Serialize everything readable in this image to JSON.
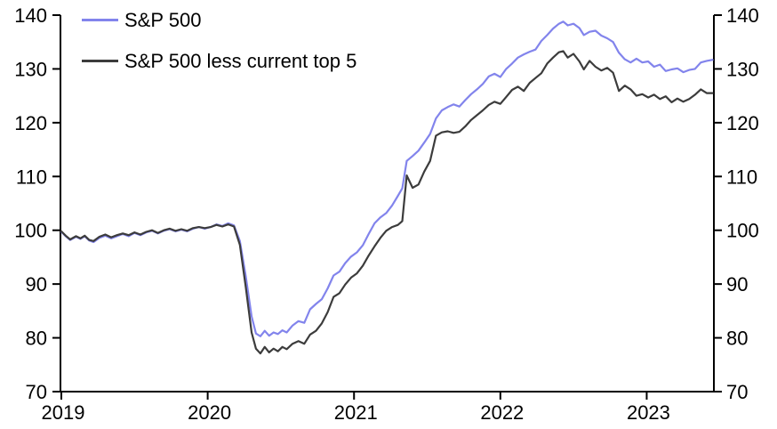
{
  "chart_data": {
    "type": "line",
    "title": "",
    "xlabel": "",
    "ylabel": "",
    "grid": false,
    "background": "#ffffff",
    "axis_color": "#000000",
    "legend_position": "inside-top-left",
    "x_axis": {
      "range": [
        2019.0,
        2023.459
      ],
      "ticks": [
        2019,
        2020,
        2021,
        2022,
        2023
      ],
      "tick_labels": [
        "2019",
        "2020",
        "2021",
        "2022",
        "2023"
      ]
    },
    "y_axis": {
      "range": [
        70,
        140
      ],
      "ticks": [
        70,
        80,
        90,
        100,
        110,
        120,
        130,
        140
      ],
      "tick_labels": [
        "70",
        "80",
        "90",
        "100",
        "110",
        "120",
        "130",
        "140"
      ],
      "sides": [
        "left",
        "right"
      ]
    },
    "series": [
      {
        "name": "S&P 500",
        "color": "#8284EC",
        "line_width": 2.2,
        "points": [
          [
            2019.0,
            99.7
          ],
          [
            2019.03,
            98.9
          ],
          [
            2019.06,
            98.2
          ],
          [
            2019.1,
            98.8
          ],
          [
            2019.13,
            98.4
          ],
          [
            2019.16,
            98.9
          ],
          [
            2019.19,
            98.1
          ],
          [
            2019.22,
            97.8
          ],
          [
            2019.26,
            98.6
          ],
          [
            2019.3,
            99.0
          ],
          [
            2019.34,
            98.5
          ],
          [
            2019.38,
            98.9
          ],
          [
            2019.42,
            99.3
          ],
          [
            2019.46,
            98.9
          ],
          [
            2019.5,
            99.5
          ],
          [
            2019.54,
            99.1
          ],
          [
            2019.58,
            99.6
          ],
          [
            2019.62,
            99.9
          ],
          [
            2019.66,
            99.4
          ],
          [
            2019.7,
            99.9
          ],
          [
            2019.74,
            100.2
          ],
          [
            2019.78,
            99.8
          ],
          [
            2019.82,
            100.1
          ],
          [
            2019.86,
            99.8
          ],
          [
            2019.9,
            100.3
          ],
          [
            2019.94,
            100.6
          ],
          [
            2019.98,
            100.3
          ],
          [
            2020.02,
            100.6
          ],
          [
            2020.06,
            101.1
          ],
          [
            2020.1,
            100.8
          ],
          [
            2020.14,
            101.3
          ],
          [
            2020.18,
            100.9
          ],
          [
            2020.22,
            98.0
          ],
          [
            2020.26,
            91.5
          ],
          [
            2020.3,
            84.0
          ],
          [
            2020.33,
            80.8
          ],
          [
            2020.36,
            80.3
          ],
          [
            2020.39,
            81.3
          ],
          [
            2020.42,
            80.4
          ],
          [
            2020.45,
            81.0
          ],
          [
            2020.48,
            80.7
          ],
          [
            2020.51,
            81.4
          ],
          [
            2020.54,
            81.0
          ],
          [
            2020.58,
            82.3
          ],
          [
            2020.62,
            83.1
          ],
          [
            2020.66,
            82.8
          ],
          [
            2020.7,
            85.3
          ],
          [
            2020.74,
            86.3
          ],
          [
            2020.78,
            87.2
          ],
          [
            2020.82,
            89.2
          ],
          [
            2020.86,
            91.6
          ],
          [
            2020.9,
            92.3
          ],
          [
            2020.94,
            93.9
          ],
          [
            2020.98,
            95.1
          ],
          [
            2021.02,
            95.9
          ],
          [
            2021.06,
            97.2
          ],
          [
            2021.1,
            99.3
          ],
          [
            2021.14,
            101.3
          ],
          [
            2021.18,
            102.4
          ],
          [
            2021.22,
            103.2
          ],
          [
            2021.26,
            104.6
          ],
          [
            2021.3,
            106.4
          ],
          [
            2021.33,
            107.8
          ],
          [
            2021.36,
            112.9
          ],
          [
            2021.4,
            113.8
          ],
          [
            2021.44,
            114.8
          ],
          [
            2021.48,
            116.3
          ],
          [
            2021.52,
            117.9
          ],
          [
            2021.56,
            120.8
          ],
          [
            2021.6,
            122.3
          ],
          [
            2021.64,
            122.9
          ],
          [
            2021.68,
            123.4
          ],
          [
            2021.72,
            123.0
          ],
          [
            2021.76,
            124.2
          ],
          [
            2021.8,
            125.3
          ],
          [
            2021.84,
            126.2
          ],
          [
            2021.88,
            127.2
          ],
          [
            2021.92,
            128.6
          ],
          [
            2021.96,
            129.1
          ],
          [
            2022.0,
            128.5
          ],
          [
            2022.04,
            130.0
          ],
          [
            2022.08,
            131.0
          ],
          [
            2022.12,
            132.1
          ],
          [
            2022.16,
            132.7
          ],
          [
            2022.2,
            133.2
          ],
          [
            2022.24,
            133.6
          ],
          [
            2022.28,
            135.2
          ],
          [
            2022.32,
            136.3
          ],
          [
            2022.36,
            137.5
          ],
          [
            2022.4,
            138.4
          ],
          [
            2022.43,
            138.8
          ],
          [
            2022.46,
            138.1
          ],
          [
            2022.5,
            138.4
          ],
          [
            2022.54,
            137.6
          ],
          [
            2022.57,
            136.3
          ],
          [
            2022.61,
            136.9
          ],
          [
            2022.65,
            137.1
          ],
          [
            2022.69,
            136.2
          ],
          [
            2022.73,
            135.7
          ],
          [
            2022.77,
            135.0
          ],
          [
            2022.81,
            133.0
          ],
          [
            2022.85,
            131.8
          ],
          [
            2022.89,
            131.2
          ],
          [
            2022.93,
            131.9
          ],
          [
            2022.97,
            131.2
          ],
          [
            2023.01,
            131.4
          ],
          [
            2023.05,
            130.4
          ],
          [
            2023.09,
            130.8
          ],
          [
            2023.13,
            129.6
          ],
          [
            2023.17,
            129.9
          ],
          [
            2023.21,
            130.1
          ],
          [
            2023.25,
            129.4
          ],
          [
            2023.29,
            129.8
          ],
          [
            2023.33,
            130.0
          ],
          [
            2023.37,
            131.2
          ],
          [
            2023.41,
            131.5
          ],
          [
            2023.45,
            131.7
          ]
        ]
      },
      {
        "name": "S&P 500 less current top 5",
        "color": "#3C3C3C",
        "line_width": 2.2,
        "points": [
          [
            2019.0,
            99.8
          ],
          [
            2019.03,
            99.0
          ],
          [
            2019.06,
            98.3
          ],
          [
            2019.1,
            98.9
          ],
          [
            2019.13,
            98.5
          ],
          [
            2019.16,
            99.0
          ],
          [
            2019.19,
            98.2
          ],
          [
            2019.22,
            98.0
          ],
          [
            2019.26,
            98.8
          ],
          [
            2019.3,
            99.2
          ],
          [
            2019.34,
            98.7
          ],
          [
            2019.38,
            99.1
          ],
          [
            2019.42,
            99.4
          ],
          [
            2019.46,
            99.1
          ],
          [
            2019.5,
            99.6
          ],
          [
            2019.54,
            99.2
          ],
          [
            2019.58,
            99.7
          ],
          [
            2019.62,
            100.0
          ],
          [
            2019.66,
            99.5
          ],
          [
            2019.7,
            100.0
          ],
          [
            2019.74,
            100.3
          ],
          [
            2019.78,
            99.9
          ],
          [
            2019.82,
            100.2
          ],
          [
            2019.86,
            99.9
          ],
          [
            2019.9,
            100.4
          ],
          [
            2019.94,
            100.6
          ],
          [
            2019.98,
            100.4
          ],
          [
            2020.02,
            100.6
          ],
          [
            2020.06,
            101.0
          ],
          [
            2020.1,
            100.7
          ],
          [
            2020.14,
            101.1
          ],
          [
            2020.18,
            100.7
          ],
          [
            2020.22,
            97.3
          ],
          [
            2020.26,
            89.5
          ],
          [
            2020.3,
            81.0
          ],
          [
            2020.33,
            78.0
          ],
          [
            2020.36,
            77.1
          ],
          [
            2020.39,
            78.3
          ],
          [
            2020.42,
            77.3
          ],
          [
            2020.45,
            78.0
          ],
          [
            2020.48,
            77.5
          ],
          [
            2020.51,
            78.3
          ],
          [
            2020.54,
            77.9
          ],
          [
            2020.58,
            78.9
          ],
          [
            2020.62,
            79.4
          ],
          [
            2020.66,
            78.9
          ],
          [
            2020.7,
            80.6
          ],
          [
            2020.74,
            81.3
          ],
          [
            2020.78,
            82.7
          ],
          [
            2020.82,
            84.8
          ],
          [
            2020.86,
            87.6
          ],
          [
            2020.9,
            88.3
          ],
          [
            2020.94,
            89.9
          ],
          [
            2020.98,
            91.2
          ],
          [
            2021.02,
            92.0
          ],
          [
            2021.06,
            93.4
          ],
          [
            2021.1,
            95.3
          ],
          [
            2021.14,
            97.0
          ],
          [
            2021.18,
            98.6
          ],
          [
            2021.22,
            99.9
          ],
          [
            2021.26,
            100.6
          ],
          [
            2021.3,
            101.0
          ],
          [
            2021.33,
            101.7
          ],
          [
            2021.36,
            110.2
          ],
          [
            2021.4,
            107.9
          ],
          [
            2021.44,
            108.5
          ],
          [
            2021.48,
            110.9
          ],
          [
            2021.52,
            112.9
          ],
          [
            2021.56,
            117.6
          ],
          [
            2021.6,
            118.2
          ],
          [
            2021.64,
            118.4
          ],
          [
            2021.68,
            118.1
          ],
          [
            2021.72,
            118.3
          ],
          [
            2021.76,
            119.3
          ],
          [
            2021.8,
            120.5
          ],
          [
            2021.84,
            121.4
          ],
          [
            2021.88,
            122.3
          ],
          [
            2021.92,
            123.3
          ],
          [
            2021.96,
            123.9
          ],
          [
            2022.0,
            123.5
          ],
          [
            2022.04,
            124.8
          ],
          [
            2022.08,
            126.1
          ],
          [
            2022.12,
            126.7
          ],
          [
            2022.16,
            125.9
          ],
          [
            2022.2,
            127.4
          ],
          [
            2022.24,
            128.3
          ],
          [
            2022.28,
            129.2
          ],
          [
            2022.32,
            131.0
          ],
          [
            2022.36,
            132.1
          ],
          [
            2022.4,
            133.1
          ],
          [
            2022.43,
            133.3
          ],
          [
            2022.46,
            132.1
          ],
          [
            2022.5,
            132.8
          ],
          [
            2022.54,
            131.4
          ],
          [
            2022.57,
            129.9
          ],
          [
            2022.61,
            131.5
          ],
          [
            2022.65,
            130.4
          ],
          [
            2022.69,
            129.7
          ],
          [
            2022.73,
            130.2
          ],
          [
            2022.77,
            129.3
          ],
          [
            2022.81,
            125.9
          ],
          [
            2022.85,
            126.9
          ],
          [
            2022.89,
            126.2
          ],
          [
            2022.93,
            125.0
          ],
          [
            2022.97,
            125.3
          ],
          [
            2023.01,
            124.7
          ],
          [
            2023.05,
            125.2
          ],
          [
            2023.09,
            124.4
          ],
          [
            2023.13,
            124.9
          ],
          [
            2023.17,
            123.8
          ],
          [
            2023.21,
            124.5
          ],
          [
            2023.25,
            123.9
          ],
          [
            2023.29,
            124.4
          ],
          [
            2023.33,
            125.2
          ],
          [
            2023.37,
            126.2
          ],
          [
            2023.41,
            125.5
          ],
          [
            2023.45,
            125.5
          ]
        ]
      }
    ]
  }
}
